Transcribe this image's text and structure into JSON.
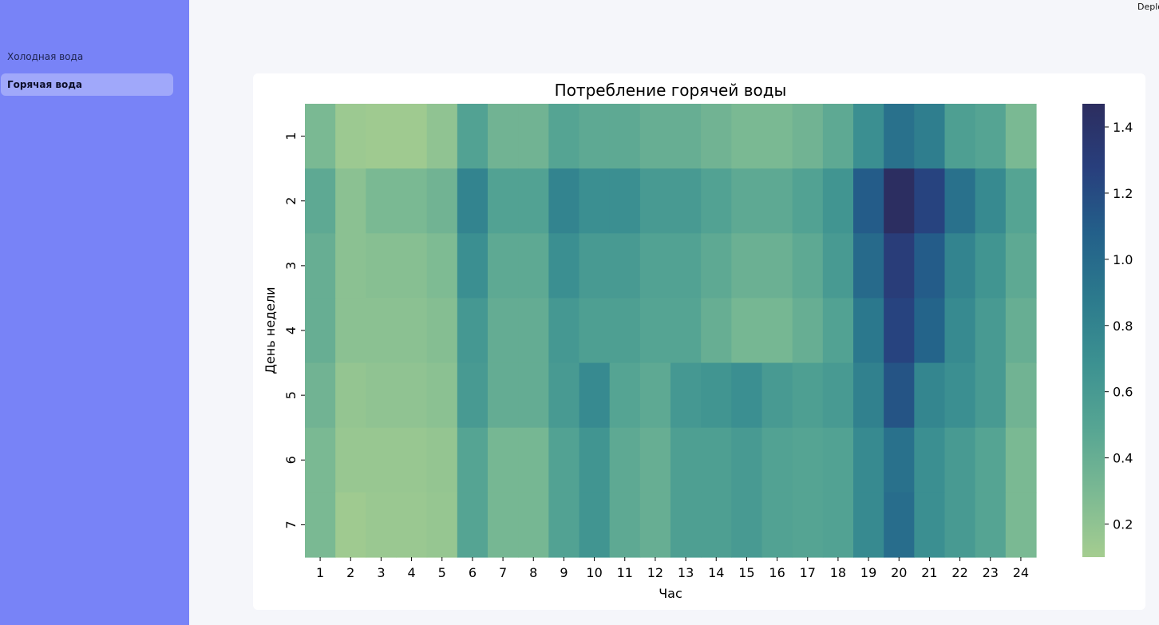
{
  "sidebar": {
    "items": [
      {
        "label": "Холодная вода",
        "active": false
      },
      {
        "label": "Горячая вода",
        "active": true
      }
    ]
  },
  "header": {
    "deploy_label": "Deploy"
  },
  "chart_data": {
    "type": "heatmap",
    "title": "Потребление горячей воды",
    "xlabel": "Час",
    "ylabel": "День недели",
    "x": [
      1,
      2,
      3,
      4,
      5,
      6,
      7,
      8,
      9,
      10,
      11,
      12,
      13,
      14,
      15,
      16,
      17,
      18,
      19,
      20,
      21,
      22,
      23,
      24
    ],
    "y": [
      1,
      2,
      3,
      4,
      5,
      6,
      7
    ],
    "values": [
      [
        0.3,
        0.14,
        0.13,
        0.13,
        0.2,
        0.52,
        0.35,
        0.35,
        0.5,
        0.45,
        0.45,
        0.4,
        0.4,
        0.35,
        0.3,
        0.3,
        0.35,
        0.45,
        0.7,
        0.95,
        0.85,
        0.55,
        0.5,
        0.3
      ],
      [
        0.45,
        0.22,
        0.3,
        0.3,
        0.35,
        0.8,
        0.52,
        0.52,
        0.8,
        0.7,
        0.7,
        0.6,
        0.6,
        0.52,
        0.45,
        0.45,
        0.52,
        0.65,
        1.1,
        1.46,
        1.25,
        0.95,
        0.75,
        0.5
      ],
      [
        0.4,
        0.22,
        0.24,
        0.24,
        0.28,
        0.7,
        0.45,
        0.45,
        0.7,
        0.6,
        0.6,
        0.52,
        0.52,
        0.45,
        0.38,
        0.38,
        0.45,
        0.6,
        1.0,
        1.3,
        1.1,
        0.8,
        0.65,
        0.45
      ],
      [
        0.4,
        0.22,
        0.22,
        0.22,
        0.25,
        0.62,
        0.42,
        0.42,
        0.62,
        0.55,
        0.55,
        0.5,
        0.5,
        0.4,
        0.32,
        0.32,
        0.4,
        0.52,
        0.9,
        1.25,
        1.05,
        0.75,
        0.6,
        0.4
      ],
      [
        0.35,
        0.18,
        0.2,
        0.2,
        0.22,
        0.6,
        0.42,
        0.42,
        0.6,
        0.75,
        0.5,
        0.45,
        0.62,
        0.65,
        0.7,
        0.6,
        0.55,
        0.6,
        0.82,
        1.15,
        0.78,
        0.7,
        0.6,
        0.35
      ],
      [
        0.3,
        0.16,
        0.16,
        0.16,
        0.18,
        0.5,
        0.32,
        0.32,
        0.52,
        0.65,
        0.45,
        0.4,
        0.55,
        0.55,
        0.6,
        0.52,
        0.5,
        0.52,
        0.75,
        0.95,
        0.7,
        0.6,
        0.5,
        0.3
      ],
      [
        0.3,
        0.13,
        0.15,
        0.15,
        0.17,
        0.5,
        0.32,
        0.32,
        0.52,
        0.65,
        0.45,
        0.4,
        0.55,
        0.55,
        0.6,
        0.52,
        0.5,
        0.52,
        0.75,
        0.98,
        0.7,
        0.6,
        0.5,
        0.3
      ]
    ],
    "vmin": 0.1,
    "vmax": 1.47,
    "colorbar_ticks": [
      "0.2",
      "0.4",
      "0.6",
      "0.8",
      "1.0",
      "1.2",
      "1.4"
    ],
    "colormap": "crest",
    "colormap_stops": [
      "#a5cd90",
      "#7bb993",
      "#56a593",
      "#3c9191",
      "#2c7a8d",
      "#23608a",
      "#283f7d",
      "#2c2d5f"
    ]
  }
}
